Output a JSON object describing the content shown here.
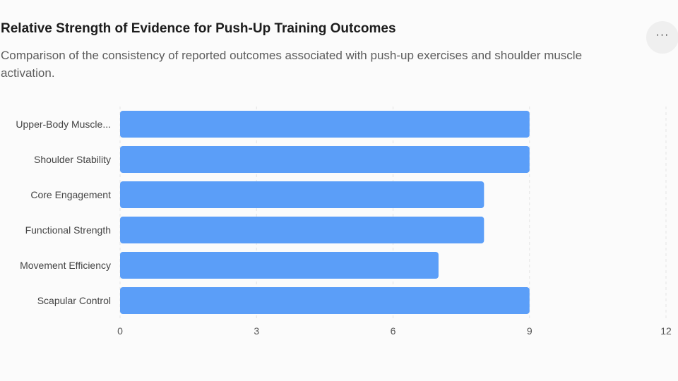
{
  "header": {
    "title": "Relative Strength of Evidence for Push-Up Training Outcomes",
    "subtitle": "Comparison of the consistency of reported outcomes associated with push-up exercises and shoulder muscle activation.",
    "more_label": "···"
  },
  "chart_data": {
    "type": "bar",
    "orientation": "horizontal",
    "title": "Relative Strength of Evidence for Push-Up Training Outcomes",
    "subtitle": "Comparison of the consistency of reported outcomes associated with push-up exercises and shoulder muscle activation.",
    "categories": [
      "Upper-Body Muscle...",
      "Shoulder Stability",
      "Core Engagement",
      "Functional Strength",
      "Movement Efficiency",
      "Scapular Control"
    ],
    "values": [
      9,
      9,
      8,
      8,
      7,
      9
    ],
    "xlim": [
      0,
      12
    ],
    "xticks": [
      0,
      3,
      6,
      9,
      12
    ],
    "grid": true,
    "bar_color": "#5b9ef8"
  }
}
